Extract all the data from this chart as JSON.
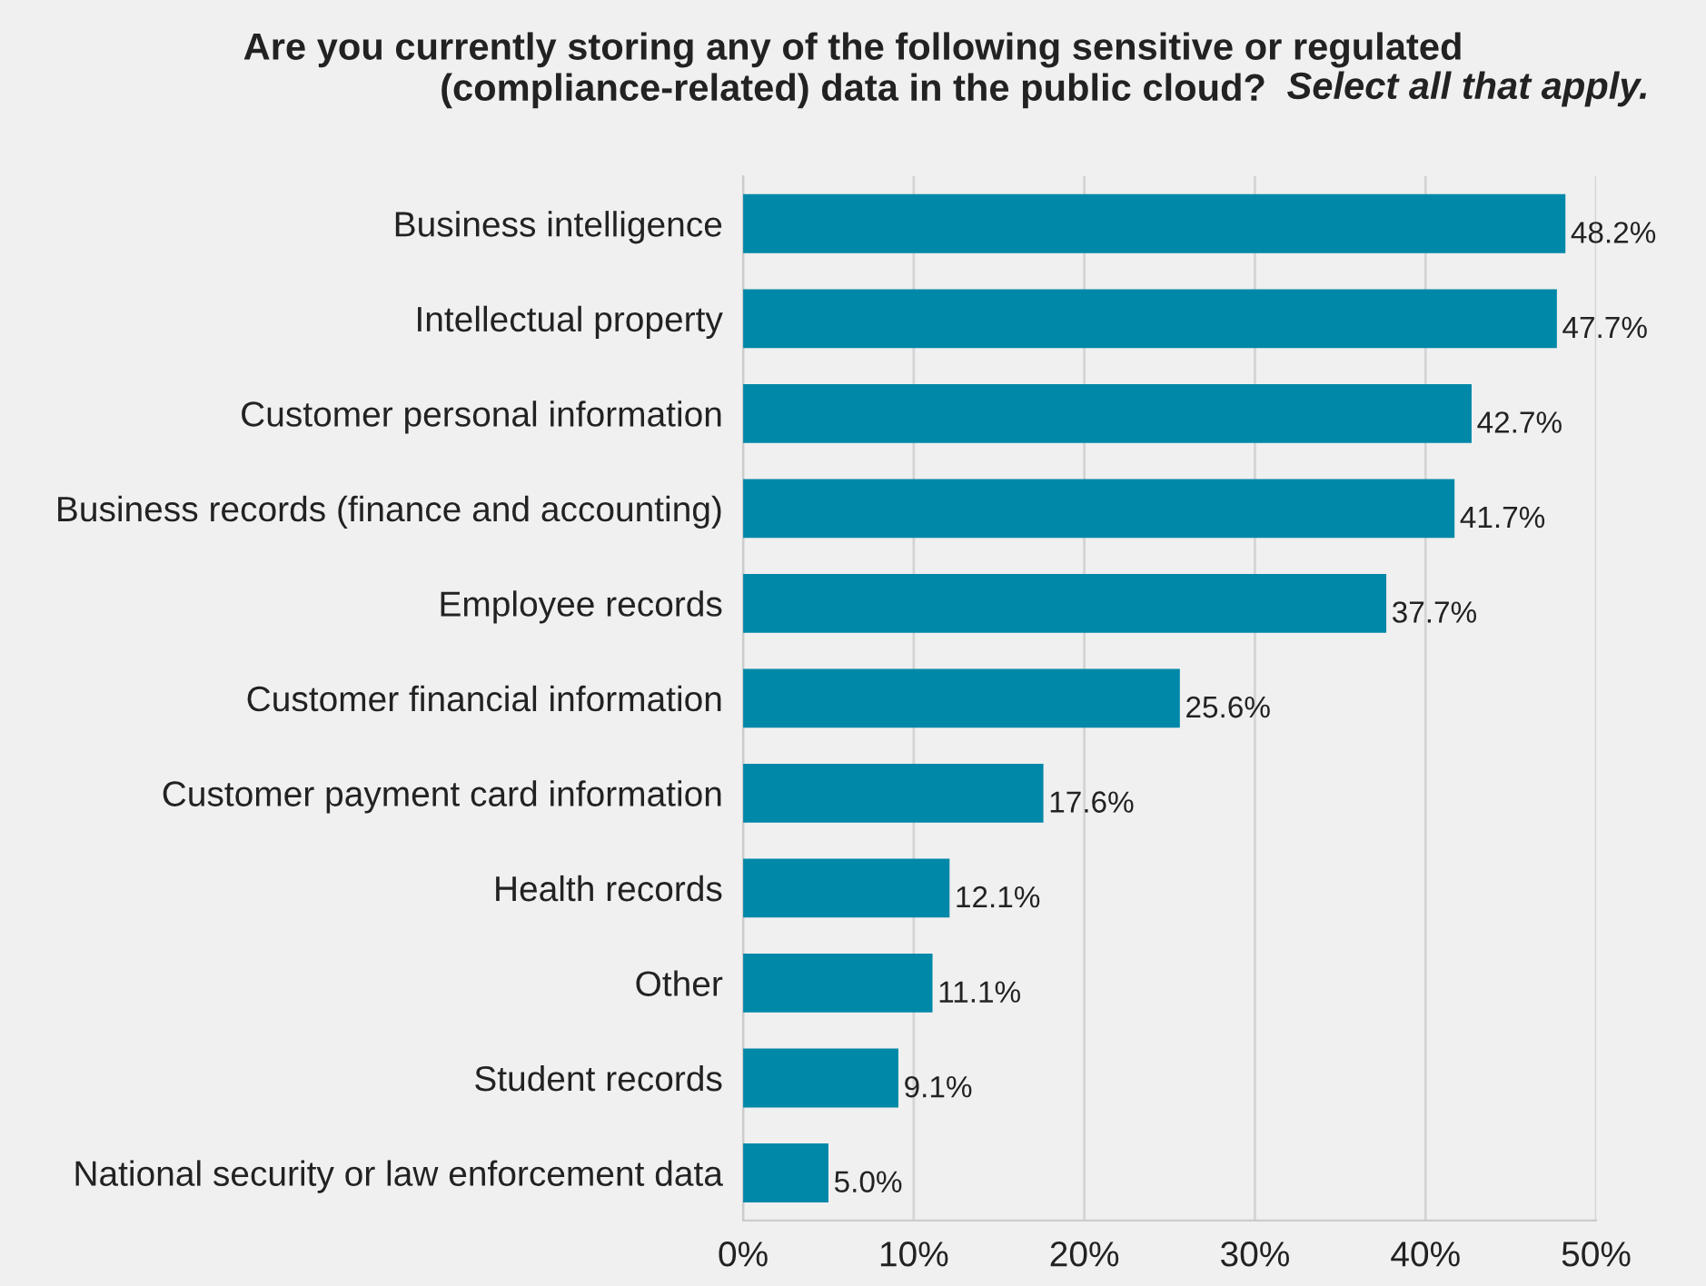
{
  "chart_data": {
    "type": "bar",
    "orientation": "horizontal",
    "title": "Are you currently storing any of the following sensitive or regulated (compliance-related) data in the public cloud?",
    "subtitle": "Select all that apply.",
    "categories": [
      "Business intelligence",
      "Intellectual property",
      "Customer personal information",
      "Business records (finance and accounting)",
      "Employee records",
      "Customer financial information",
      "Customer payment card information",
      "Health records",
      "Other",
      "Student records",
      "National security or law enforcement data"
    ],
    "values": [
      48.2,
      47.7,
      42.7,
      41.7,
      37.7,
      25.6,
      17.6,
      12.1,
      11.1,
      9.1,
      5.0
    ],
    "value_labels": [
      "48.2%",
      "47.7%",
      "42.7%",
      "41.7%",
      "37.7%",
      "25.6%",
      "17.6%",
      "12.1%",
      "11.1%",
      "9.1%",
      "5.0%"
    ],
    "color": "#0088a8",
    "xlim": [
      0,
      50
    ],
    "xticks": [
      {
        "value": 0,
        "label": "0%"
      },
      {
        "value": 10,
        "label": "10%"
      },
      {
        "value": 20,
        "label": "20%"
      },
      {
        "value": 30,
        "label": "30%"
      },
      {
        "value": 40,
        "label": "40%"
      },
      {
        "value": 50,
        "label": "50%"
      }
    ],
    "grid": "x",
    "legend": false
  }
}
